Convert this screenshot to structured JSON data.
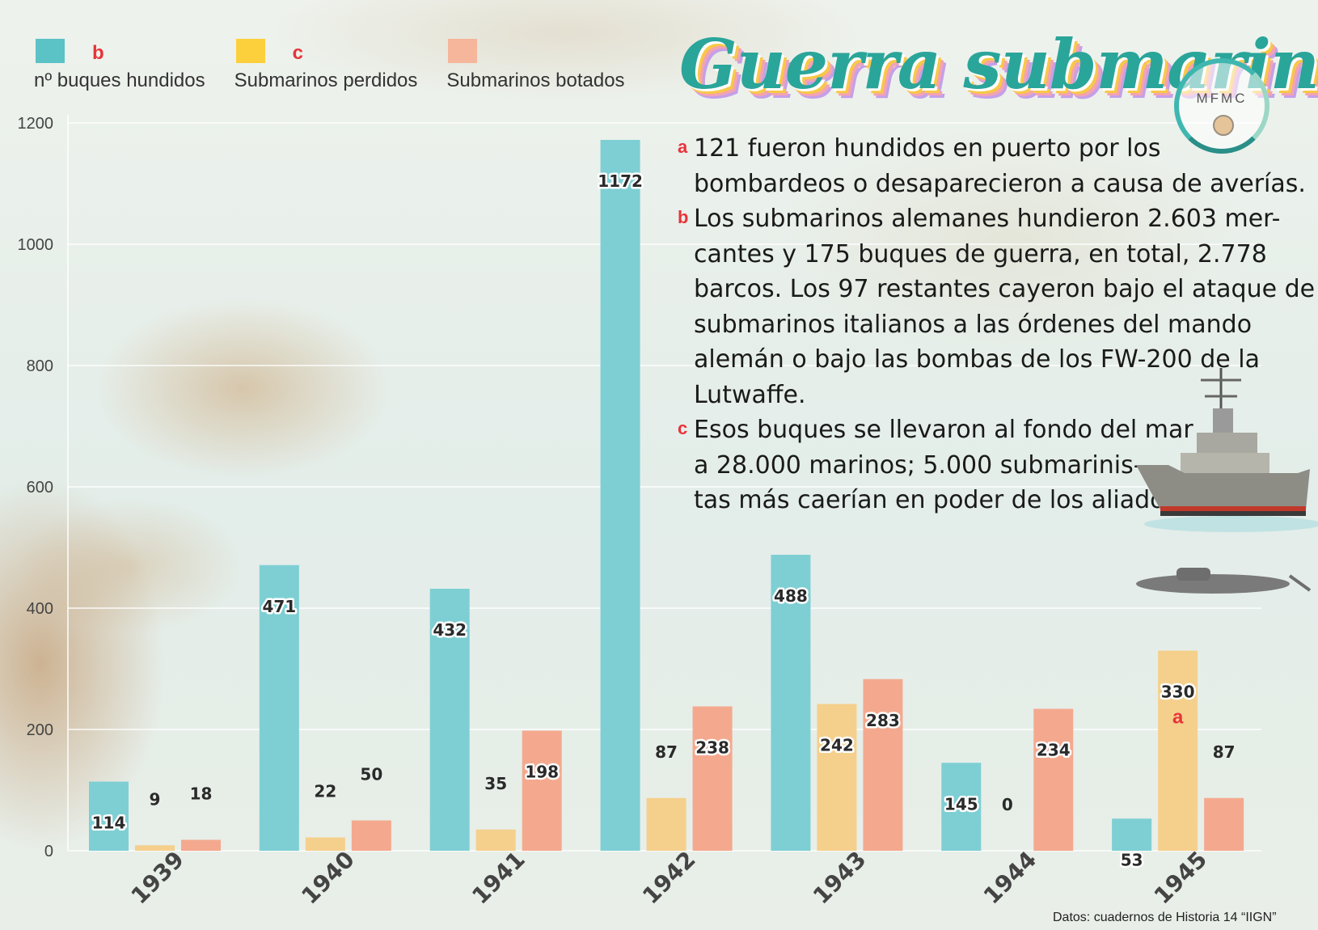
{
  "title": "Guerra submarina",
  "logo_text": "MFMC",
  "legend": [
    {
      "label": "nº buques hundidos",
      "note": "b",
      "color": "#5bc2c6"
    },
    {
      "label": "Submarinos perdidos",
      "note": "c",
      "color": "#fcd03c"
    },
    {
      "label": "Submarinos botados",
      "note": "",
      "color": "#f5b69c"
    }
  ],
  "notes": [
    {
      "marker": "a",
      "lines": [
        "121 fueron hundidos en puerto por los",
        "bombardeos o desaparecieron a causa de averías."
      ]
    },
    {
      "marker": "b",
      "lines": [
        "Los submarinos alemanes hundieron 2.603 mer-",
        "cantes y 175 buques de guerra, en total, 2.778",
        "barcos. Los 97 restantes cayeron bajo el ataque de",
        "submarinos italianos a las órdenes del mando",
        "alemán o bajo las bombas de los FW-200 de la",
        "Lutwaffe."
      ]
    },
    {
      "marker": "c",
      "lines": [
        "Esos buques se llevaron al fondo del mar",
        "a 28.000 marinos; 5.000 submarinis-",
        "tas más caerían en poder de los aliados."
      ]
    }
  ],
  "source": "Datos: cuadernos de Historia 14 “IIGN”",
  "chart_data": {
    "type": "bar",
    "categories": [
      "1939",
      "1940",
      "1941",
      "1942",
      "1943",
      "1944",
      "1945"
    ],
    "series": [
      {
        "name": "nº buques hundidos",
        "color": "#7ecfd4",
        "values": [
          114,
          471,
          432,
          1172,
          488,
          145,
          53
        ]
      },
      {
        "name": "Submarinos perdidos",
        "color": "#f5d08c",
        "values": [
          9,
          22,
          35,
          87,
          242,
          0,
          330
        ]
      },
      {
        "name": "Submarinos botados",
        "color": "#f4a98e",
        "values": [
          18,
          50,
          198,
          238,
          283,
          234,
          87
        ]
      }
    ],
    "yticks": [
      0,
      200,
      400,
      600,
      800,
      1000,
      1200
    ],
    "ylim": [
      0,
      1200
    ],
    "annotations": [
      {
        "category": "1945",
        "series": "Submarinos perdidos",
        "text": "a"
      }
    ],
    "grid": true
  }
}
